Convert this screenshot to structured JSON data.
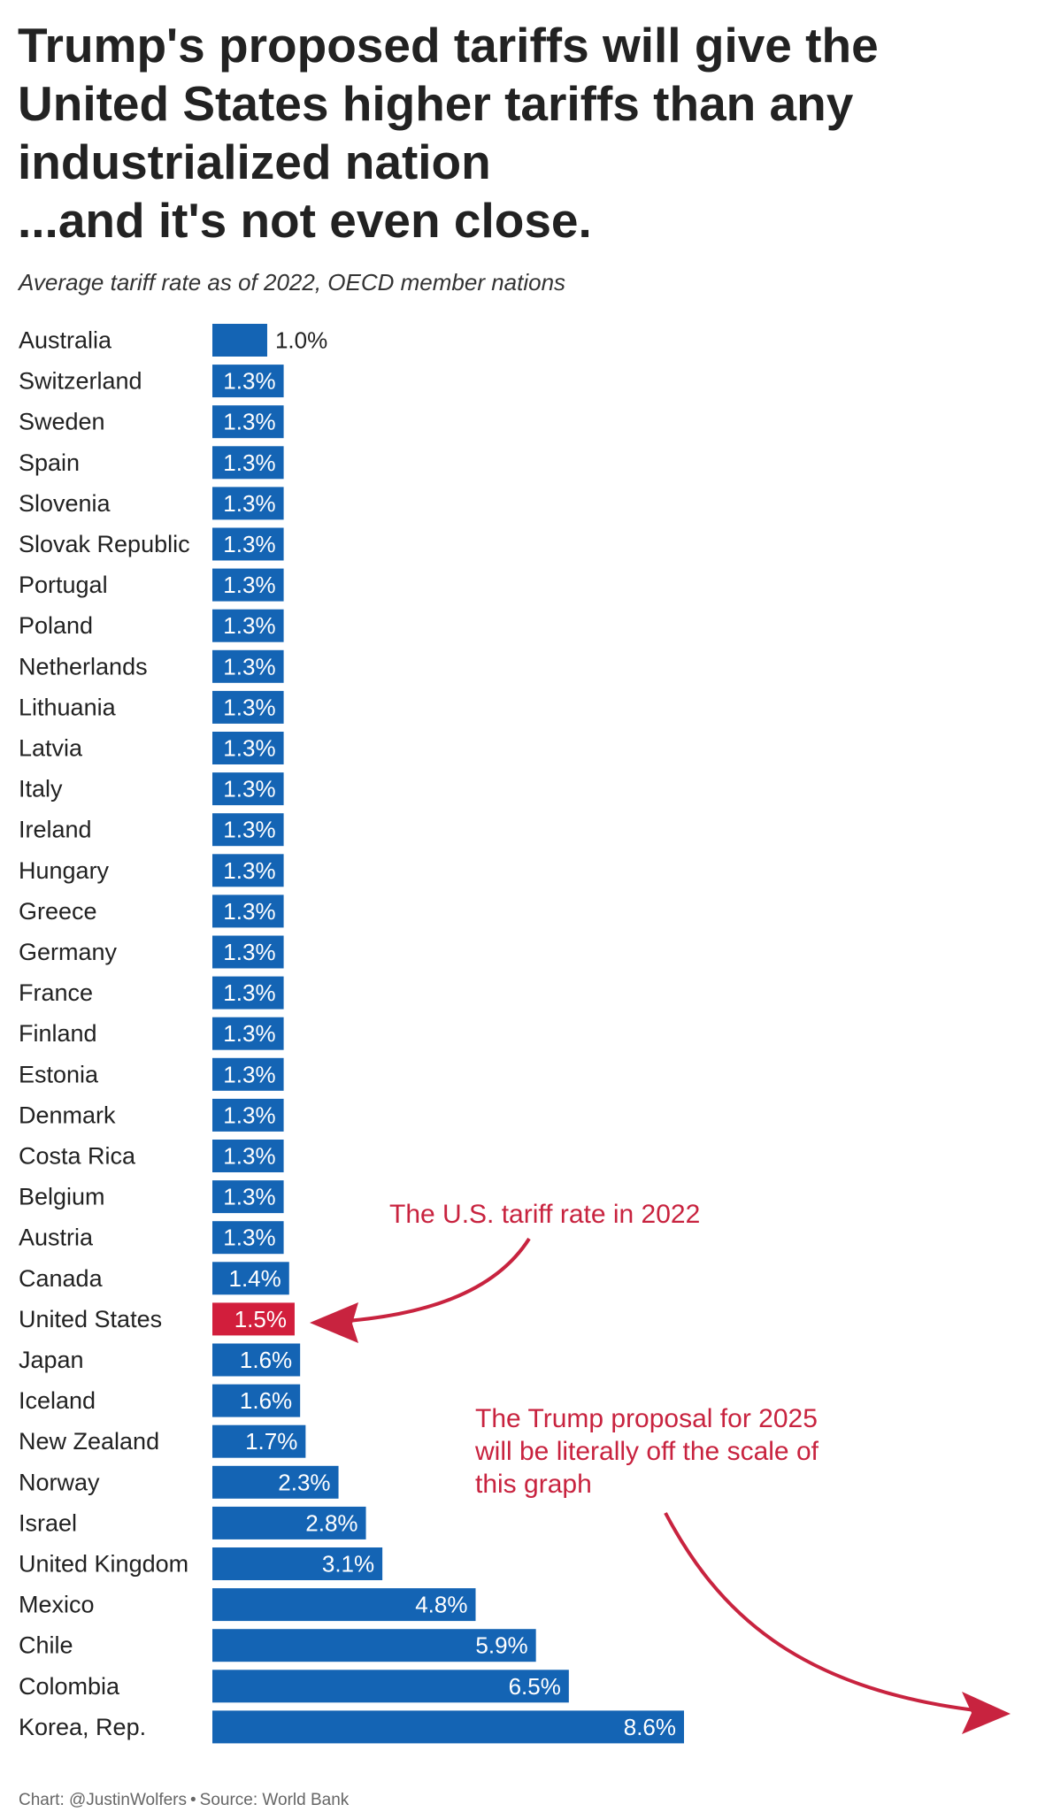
{
  "header": {
    "title_lines": [
      "Trump's proposed tariffs will give the",
      "United States higher tariffs than any",
      "industrialized nation",
      "...and it's not even close."
    ],
    "subtitle": "Average tariff rate as of 2022, OECD member nations"
  },
  "annotations": {
    "us_rate": "The U.S. tariff rate in 2022",
    "trump_proposal": "The Trump proposal for 2025 will be literally off the scale of this graph"
  },
  "footer": {
    "chart_credit": "Chart: @JustinWolfers",
    "separator": "•",
    "source": "Source: World Bank"
  },
  "colors": {
    "bar": "#1464b4",
    "highlight": "#d21e3c",
    "annotation": "#c8233f"
  },
  "chart_data": {
    "type": "bar",
    "orientation": "horizontal",
    "title": "Trump's proposed tariffs will give the United States higher tariffs than any industrialized nation ...and it's not even close.",
    "subtitle": "Average tariff rate as of 2022, OECD member nations",
    "value_suffix": "%",
    "highlight": "United States",
    "categories": [
      "Australia",
      "Switzerland",
      "Sweden",
      "Spain",
      "Slovenia",
      "Slovak Republic",
      "Portugal",
      "Poland",
      "Netherlands",
      "Lithuania",
      "Latvia",
      "Italy",
      "Ireland",
      "Hungary",
      "Greece",
      "Germany",
      "France",
      "Finland",
      "Estonia",
      "Denmark",
      "Costa Rica",
      "Belgium",
      "Austria",
      "Canada",
      "United States",
      "Japan",
      "Iceland",
      "New Zealand",
      "Norway",
      "Israel",
      "United Kingdom",
      "Mexico",
      "Chile",
      "Colombia",
      "Korea, Rep."
    ],
    "values": [
      1.0,
      1.3,
      1.3,
      1.3,
      1.3,
      1.3,
      1.3,
      1.3,
      1.3,
      1.3,
      1.3,
      1.3,
      1.3,
      1.3,
      1.3,
      1.3,
      1.3,
      1.3,
      1.3,
      1.3,
      1.3,
      1.3,
      1.3,
      1.4,
      1.5,
      1.6,
      1.6,
      1.7,
      2.3,
      2.8,
      3.1,
      4.8,
      5.9,
      6.5,
      8.6
    ],
    "labels": [
      "1.0%",
      "1.3%",
      "1.3%",
      "1.3%",
      "1.3%",
      "1.3%",
      "1.3%",
      "1.3%",
      "1.3%",
      "1.3%",
      "1.3%",
      "1.3%",
      "1.3%",
      "1.3%",
      "1.3%",
      "1.3%",
      "1.3%",
      "1.3%",
      "1.3%",
      "1.3%",
      "1.3%",
      "1.3%",
      "1.3%",
      "1.4%",
      "1.5%",
      "1.6%",
      "1.6%",
      "1.7%",
      "2.3%",
      "2.8%",
      "3.1%",
      "4.8%",
      "5.9%",
      "6.5%",
      "8.6%"
    ],
    "xlim": [
      0,
      8.6
    ],
    "grid": false,
    "legend": "none"
  }
}
